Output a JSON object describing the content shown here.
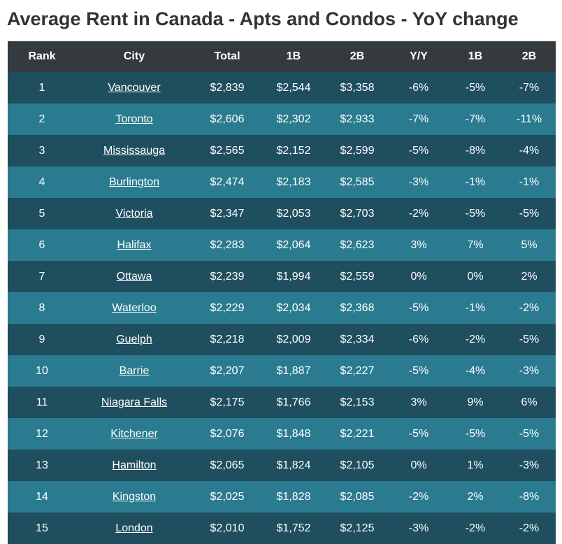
{
  "title": "Average Rent in Canada - Apts and Condos - YoY change",
  "colors": {
    "header_bg": "#343a3d",
    "row_dark": "#1f4e5f",
    "row_light": "#2a7b8f",
    "text": "#ffffff",
    "title_text": "#333333"
  },
  "table": {
    "columns": [
      "Rank",
      "City",
      "Total",
      "1B",
      "2B",
      "Y/Y",
      "1B",
      "2B"
    ],
    "rows": [
      [
        "1",
        "Vancouver",
        "$2,839",
        "$2,544",
        "$3,358",
        "-6%",
        "-5%",
        "-7%"
      ],
      [
        "2",
        "Toronto",
        "$2,606",
        "$2,302",
        "$2,933",
        "-7%",
        "-7%",
        "-11%"
      ],
      [
        "3",
        "Mississauga",
        "$2,565",
        "$2,152",
        "$2,599",
        "-5%",
        "-8%",
        "-4%"
      ],
      [
        "4",
        "Burlington",
        "$2,474",
        "$2,183",
        "$2,585",
        "-3%",
        "-1%",
        "-1%"
      ],
      [
        "5",
        "Victoria",
        "$2,347",
        "$2,053",
        "$2,703",
        "-2%",
        "-5%",
        "-5%"
      ],
      [
        "6",
        "Halifax",
        "$2,283",
        "$2,064",
        "$2,623",
        "3%",
        "7%",
        "5%"
      ],
      [
        "7",
        "Ottawa",
        "$2,239",
        "$1,994",
        "$2,559",
        "0%",
        "0%",
        "2%"
      ],
      [
        "8",
        "Waterloo",
        "$2,229",
        "$2,034",
        "$2,368",
        "-5%",
        "-1%",
        "-2%"
      ],
      [
        "9",
        "Guelph",
        "$2,218",
        "$2,009",
        "$2,334",
        "-6%",
        "-2%",
        "-5%"
      ],
      [
        "10",
        "Barrie",
        "$2,207",
        "$1,887",
        "$2,227",
        "-5%",
        "-4%",
        "-3%"
      ],
      [
        "11",
        "Niagara Falls",
        "$2,175",
        "$1,766",
        "$2,153",
        "3%",
        "9%",
        "6%"
      ],
      [
        "12",
        "Kitchener",
        "$2,076",
        "$1,848",
        "$2,221",
        "-5%",
        "-5%",
        "-5%"
      ],
      [
        "13",
        "Hamilton",
        "$2,065",
        "$1,824",
        "$2,105",
        "0%",
        "1%",
        "-3%"
      ],
      [
        "14",
        "Kingston",
        "$2,025",
        "$1,828",
        "$2,085",
        "-2%",
        "2%",
        "-8%"
      ],
      [
        "15",
        "London",
        "$2,010",
        "$1,752",
        "$2,125",
        "-3%",
        "-2%",
        "-2%"
      ]
    ]
  }
}
